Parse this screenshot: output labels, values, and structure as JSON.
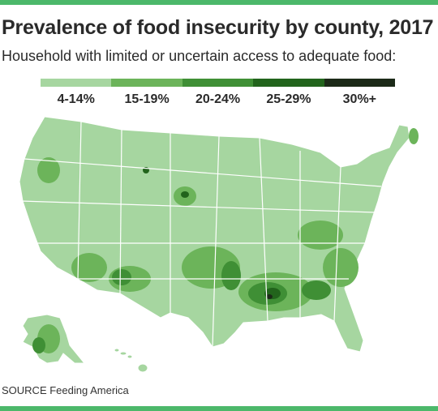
{
  "header": {
    "title": "Prevalence of food insecurity by county, 2017",
    "subtitle": "Household with limited or uncertain access to adequate food:"
  },
  "legend": {
    "items": [
      {
        "label": "4-14%",
        "color": "#a6d6a0"
      },
      {
        "label": "15-19%",
        "color": "#6cb45a"
      },
      {
        "label": "20-24%",
        "color": "#3f8f35"
      },
      {
        "label": "25-29%",
        "color": "#22641c"
      },
      {
        "label": "30%+",
        "color": "#1c2a18"
      }
    ]
  },
  "map": {
    "land_color": "#a6d6a0",
    "border_color": "#ffffff",
    "regions": [
      "contiguous-us",
      "alaska",
      "hawaii"
    ]
  },
  "footer": {
    "source": "SOURCE Feeding America"
  }
}
